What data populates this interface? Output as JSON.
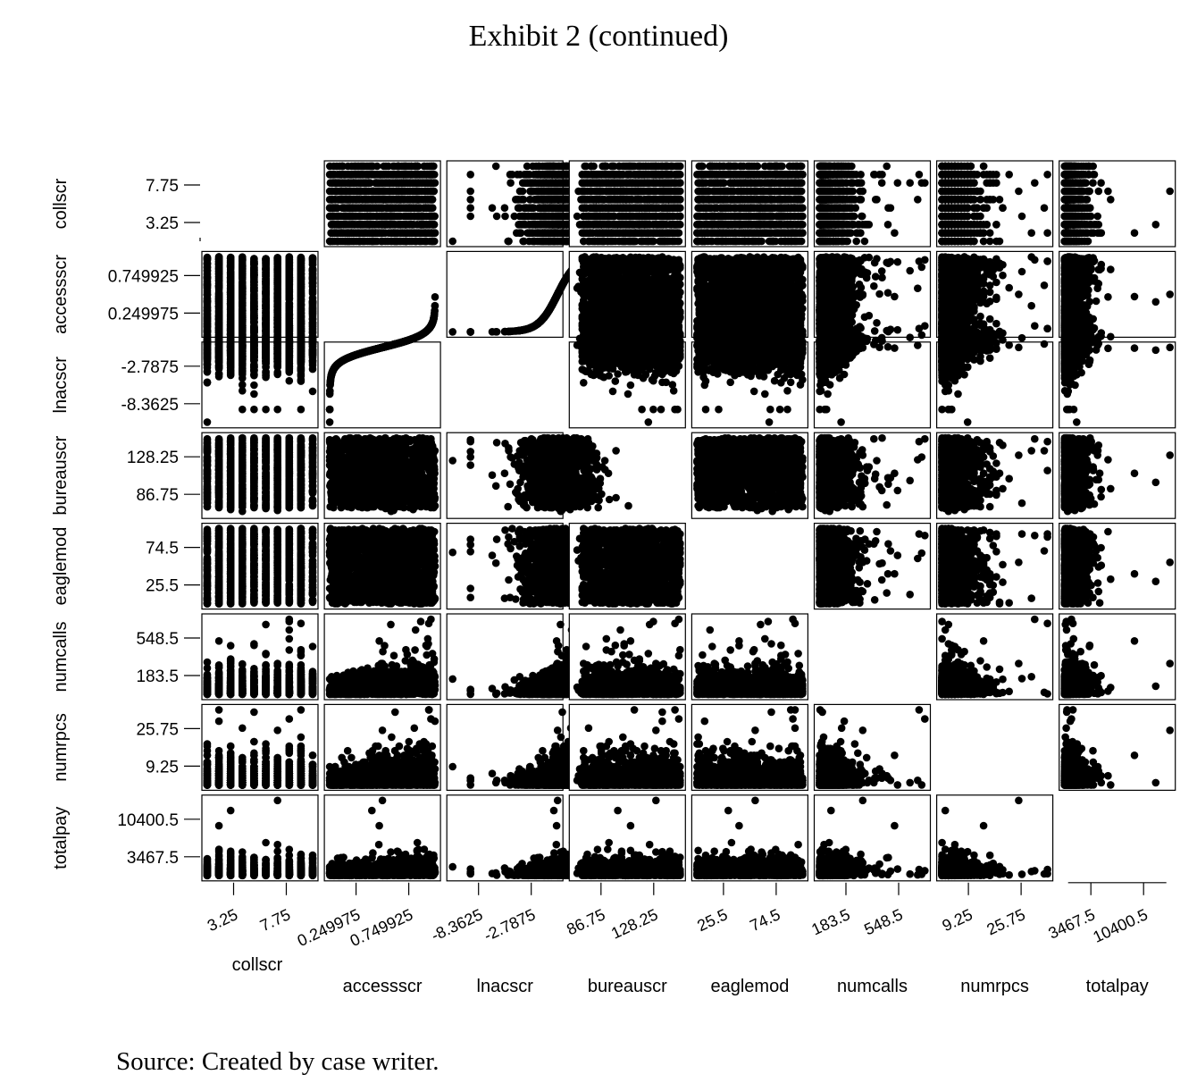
{
  "page": {
    "title": "Exhibit 2 (continued)",
    "source": "Source: Created by case writer."
  },
  "chart_data": {
    "type": "scatter",
    "subtype": "scatterplot-matrix",
    "variables": [
      "collscr",
      "accessscr",
      "lnacscr",
      "bureauscr",
      "eaglemod",
      "numcalls",
      "numrpcs",
      "totalpay"
    ],
    "ticks": [
      [
        {
          "v": 3.25,
          "label": "3.25"
        },
        {
          "v": 7.75,
          "label": "7.75"
        }
      ],
      [
        {
          "v": 0.249975,
          "label": "0.249975"
        },
        {
          "v": 0.749925,
          "label": "0.749925"
        }
      ],
      [
        {
          "v": -8.3625,
          "label": "-8.3625"
        },
        {
          "v": -2.7875,
          "label": "-2.7875"
        }
      ],
      [
        {
          "v": 86.75,
          "label": "86.75"
        },
        {
          "v": 128.25,
          "label": "128.25"
        }
      ],
      [
        {
          "v": 25.5,
          "label": "25.5"
        },
        {
          "v": 74.5,
          "label": "74.5"
        }
      ],
      [
        {
          "v": 183.5,
          "label": "183.5"
        },
        {
          "v": 548.5,
          "label": "548.5"
        }
      ],
      [
        {
          "v": 9.25,
          "label": "9.25"
        },
        {
          "v": 25.75,
          "label": "25.75"
        }
      ],
      [
        {
          "v": 3467.5,
          "label": "3467.5"
        },
        {
          "v": 10400.5,
          "label": "10400.5"
        }
      ]
    ],
    "ranges": [
      [
        1,
        10
      ],
      [
        0,
        1
      ],
      [
        -11.15,
        0
      ],
      [
        66,
        149
      ],
      [
        1,
        99
      ],
      [
        1,
        731
      ],
      [
        1,
        34
      ],
      [
        1,
        13867
      ]
    ],
    "diagonal": "blank",
    "marker": "filled-circle",
    "marker_color": "#000000"
  }
}
